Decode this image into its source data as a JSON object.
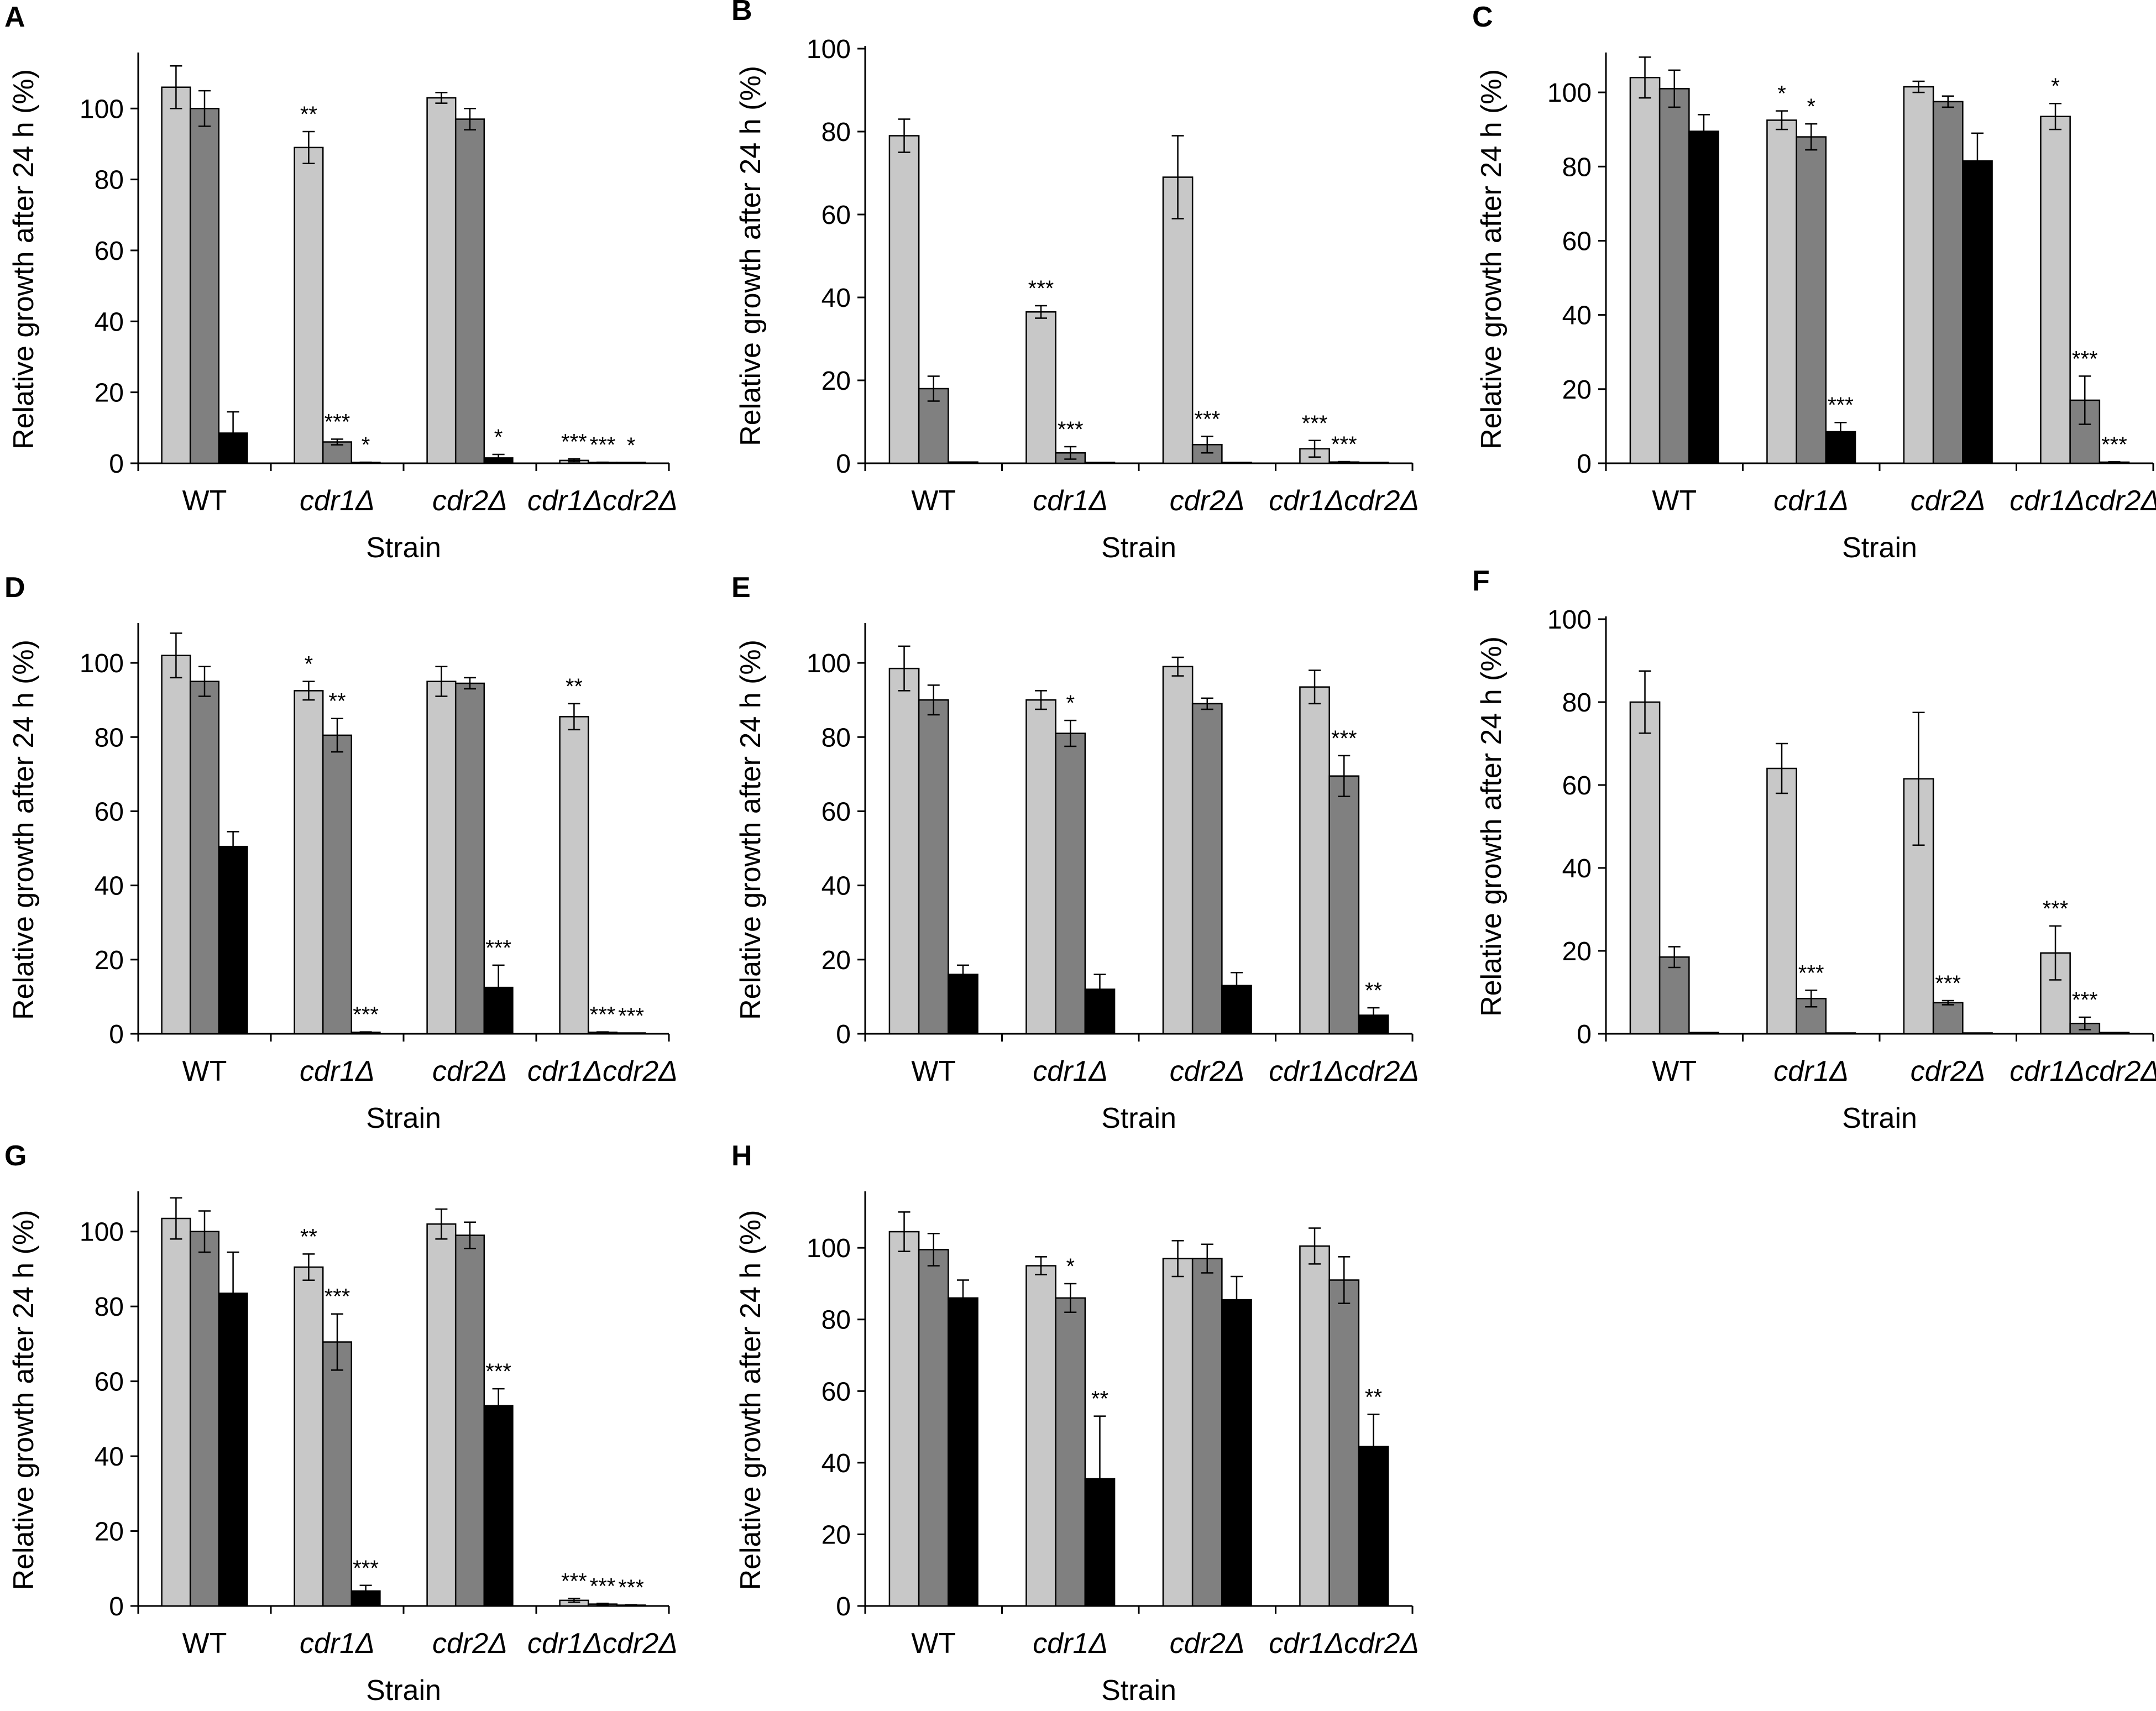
{
  "colors": {
    "series_light": "#c8c8c8",
    "series_mid": "#808080",
    "series_dark": "#000000",
    "axis": "#000000"
  },
  "chart_data": [
    {
      "panel": "A",
      "type": "bar",
      "categories": [
        "WT",
        "cdr1Δ",
        "cdr2Δ",
        "cdr1Δcdr2Δ"
      ],
      "xlabel": "Strain",
      "ylabel": "Relative growth after 24 h (%)",
      "ylim": [
        0,
        115
      ],
      "yticks": [
        0,
        20,
        40,
        60,
        80,
        100
      ],
      "series": [
        {
          "name": "light",
          "values": [
            106,
            89,
            103,
            0.8
          ],
          "errors": [
            6,
            4.5,
            1.5,
            0.4
          ],
          "sig": [
            "",
            "**",
            "",
            "***"
          ]
        },
        {
          "name": "mid",
          "values": [
            100,
            6,
            97,
            0.2
          ],
          "errors": [
            5,
            0.8,
            3,
            0.1
          ],
          "sig": [
            "",
            "***",
            "",
            "***"
          ]
        },
        {
          "name": "dark",
          "values": [
            8.5,
            0.2,
            1.5,
            0.1
          ],
          "errors": [
            6,
            0.1,
            1,
            0.05
          ],
          "sig": [
            "",
            "*",
            "*",
            "*"
          ]
        }
      ]
    },
    {
      "panel": "B",
      "type": "bar",
      "categories": [
        "WT",
        "cdr1Δ",
        "cdr2Δ",
        "cdr1Δcdr2Δ"
      ],
      "xlabel": "Strain",
      "ylabel": "Relative growth after 24 h (%)",
      "ylim": [
        0,
        100
      ],
      "yticks": [
        0,
        20,
        40,
        60,
        80,
        100
      ],
      "series": [
        {
          "name": "light",
          "values": [
            79,
            36.5,
            69,
            3.5
          ],
          "errors": [
            4,
            1.5,
            10,
            2
          ],
          "sig": [
            "",
            "***",
            "",
            "***"
          ]
        },
        {
          "name": "mid",
          "values": [
            18,
            2.5,
            4.5,
            0.3
          ],
          "errors": [
            3,
            1.5,
            2,
            0.1
          ],
          "sig": [
            "",
            "***",
            "***",
            "***"
          ]
        },
        {
          "name": "dark",
          "values": [
            0.3,
            0.2,
            0.2,
            0.1
          ],
          "errors": [
            0,
            0,
            0,
            0
          ],
          "sig": [
            "",
            "",
            "",
            ""
          ]
        }
      ]
    },
    {
      "panel": "C",
      "type": "bar",
      "categories": [
        "WT",
        "cdr1Δ",
        "cdr2Δ",
        "cdr1Δcdr2Δ"
      ],
      "xlabel": "Strain",
      "ylabel": "Relative growth after 24 h (%)",
      "ylim": [
        0,
        110
      ],
      "yticks": [
        0,
        20,
        40,
        60,
        80,
        100
      ],
      "series": [
        {
          "name": "light",
          "values": [
            104,
            92.5,
            101.5,
            93.5
          ],
          "errors": [
            5.5,
            2.5,
            1.5,
            3.5
          ],
          "sig": [
            "",
            "*",
            "",
            "*"
          ]
        },
        {
          "name": "mid",
          "values": [
            101,
            88,
            97.5,
            17
          ],
          "errors": [
            5,
            3.5,
            1.5,
            6.5
          ],
          "sig": [
            "",
            "*",
            "",
            "***"
          ]
        },
        {
          "name": "dark",
          "values": [
            89.5,
            8.5,
            81.5,
            0.3
          ],
          "errors": [
            4.5,
            2.5,
            7.5,
            0.1
          ],
          "sig": [
            "",
            "***",
            "",
            "***"
          ]
        }
      ]
    },
    {
      "panel": "D",
      "type": "bar",
      "categories": [
        "WT",
        "cdr1Δ",
        "cdr2Δ",
        "cdr1Δcdr2Δ"
      ],
      "xlabel": "Strain",
      "ylabel": "Relative growth after 24 h (%)",
      "ylim": [
        0,
        110
      ],
      "yticks": [
        0,
        20,
        40,
        60,
        80,
        100
      ],
      "series": [
        {
          "name": "light",
          "values": [
            102,
            92.5,
            95,
            85.5
          ],
          "errors": [
            6,
            2.5,
            4,
            3.5
          ],
          "sig": [
            "",
            "*",
            "",
            "**"
          ]
        },
        {
          "name": "mid",
          "values": [
            95,
            80.5,
            94.5,
            0.4
          ],
          "errors": [
            4,
            4.5,
            1.5,
            0.1
          ],
          "sig": [
            "",
            "**",
            "",
            "***"
          ]
        },
        {
          "name": "dark",
          "values": [
            50.5,
            0.4,
            12.5,
            0.1
          ],
          "errors": [
            4,
            0.1,
            6,
            0.05
          ],
          "sig": [
            "",
            "***",
            "***",
            "***"
          ]
        }
      ]
    },
    {
      "panel": "E",
      "type": "bar",
      "categories": [
        "WT",
        "cdr1Δ",
        "cdr2Δ",
        "cdr1Δcdr2Δ"
      ],
      "xlabel": "Strain",
      "ylabel": "Relative growth after 24 h (%)",
      "ylim": [
        0,
        110
      ],
      "yticks": [
        0,
        20,
        40,
        60,
        80,
        100
      ],
      "series": [
        {
          "name": "light",
          "values": [
            98.5,
            90,
            99,
            93.5
          ],
          "errors": [
            6,
            2.5,
            2.5,
            4.5
          ],
          "sig": [
            "",
            "",
            "",
            ""
          ]
        },
        {
          "name": "mid",
          "values": [
            90,
            81,
            89,
            69.5
          ],
          "errors": [
            4,
            3.5,
            1.5,
            5.5
          ],
          "sig": [
            "",
            "*",
            "",
            "***"
          ]
        },
        {
          "name": "dark",
          "values": [
            16,
            12,
            13,
            5
          ],
          "errors": [
            2.5,
            4,
            3.5,
            2
          ],
          "sig": [
            "",
            "",
            "",
            "**"
          ]
        }
      ]
    },
    {
      "panel": "F",
      "type": "bar",
      "categories": [
        "WT",
        "cdr1Δ",
        "cdr2Δ",
        "cdr1Δcdr2Δ"
      ],
      "xlabel": "Strain",
      "ylabel": "Relative growth after 24 h (%)",
      "ylim": [
        0,
        100
      ],
      "yticks": [
        0,
        20,
        40,
        60,
        80,
        100
      ],
      "series": [
        {
          "name": "light",
          "values": [
            80,
            64,
            61.5,
            19.5
          ],
          "errors": [
            7.5,
            6,
            16,
            6.5
          ],
          "sig": [
            "",
            "",
            "",
            "***"
          ]
        },
        {
          "name": "mid",
          "values": [
            18.5,
            8.5,
            7.5,
            2.5
          ],
          "errors": [
            2.5,
            2,
            0.5,
            1.5
          ],
          "sig": [
            "",
            "***",
            "***",
            "***"
          ]
        },
        {
          "name": "dark",
          "values": [
            0.3,
            0.2,
            0.2,
            0.3
          ],
          "errors": [
            0,
            0,
            0,
            0
          ],
          "sig": [
            "",
            "",
            "",
            ""
          ]
        }
      ]
    },
    {
      "panel": "G",
      "type": "bar",
      "categories": [
        "WT",
        "cdr1Δ",
        "cdr2Δ",
        "cdr1Δcdr2Δ"
      ],
      "xlabel": "Strain",
      "ylabel": "Relative growth after 24 h (%)",
      "ylim": [
        0,
        110
      ],
      "yticks": [
        0,
        20,
        40,
        60,
        80,
        100
      ],
      "series": [
        {
          "name": "light",
          "values": [
            103.5,
            90.5,
            102,
            1.5
          ],
          "errors": [
            5.5,
            3.5,
            4,
            0.5
          ],
          "sig": [
            "",
            "**",
            "",
            "***"
          ]
        },
        {
          "name": "mid",
          "values": [
            100,
            70.5,
            99,
            0.5
          ],
          "errors": [
            5.5,
            7.5,
            3.5,
            0.2
          ],
          "sig": [
            "",
            "***",
            "",
            "***"
          ]
        },
        {
          "name": "dark",
          "values": [
            83.5,
            4,
            53.5,
            0.2
          ],
          "errors": [
            11,
            1.5,
            4.5,
            0.1
          ],
          "sig": [
            "",
            "***",
            "***",
            "***"
          ]
        }
      ]
    },
    {
      "panel": "H",
      "type": "bar",
      "categories": [
        "WT",
        "cdr1Δ",
        "cdr2Δ",
        "cdr1Δcdr2Δ"
      ],
      "xlabel": "Strain",
      "ylabel": "Relative growth after 24 h (%)",
      "ylim": [
        0,
        115
      ],
      "yticks": [
        0,
        20,
        40,
        60,
        80,
        100
      ],
      "series": [
        {
          "name": "light",
          "values": [
            104.5,
            95,
            97,
            100.5
          ],
          "errors": [
            5.5,
            2.5,
            5,
            5
          ],
          "sig": [
            "",
            "",
            "",
            ""
          ]
        },
        {
          "name": "mid",
          "values": [
            99.5,
            86,
            97,
            91
          ],
          "errors": [
            4.5,
            4,
            4,
            6.5
          ],
          "sig": [
            "",
            "*",
            "",
            ""
          ]
        },
        {
          "name": "dark",
          "values": [
            86,
            35.5,
            85.5,
            44.5
          ],
          "errors": [
            5,
            17.5,
            6.5,
            9
          ],
          "sig": [
            "",
            "**",
            "",
            "**"
          ]
        }
      ]
    }
  ]
}
